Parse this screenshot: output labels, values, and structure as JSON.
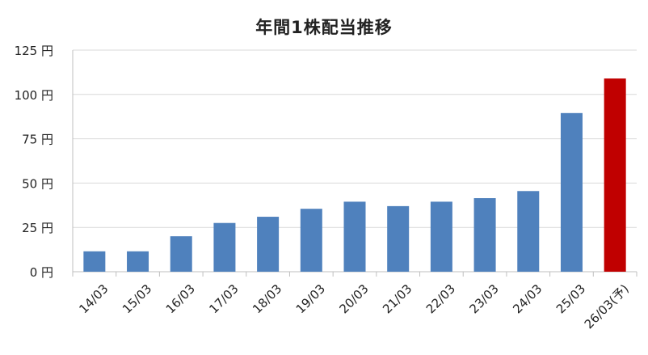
{
  "chart_data": {
    "type": "bar",
    "title": "年間1株配当推移",
    "xlabel": "",
    "ylabel": "",
    "unit": "円",
    "ylim": [
      0,
      125
    ],
    "yticks": [
      0,
      25,
      50,
      75,
      100,
      125
    ],
    "ytick_labels": [
      "0 円",
      "25 円",
      "50 円",
      "75 円",
      "100 円",
      "125 円"
    ],
    "grid": true,
    "legend": "none",
    "categories": [
      "14/03",
      "15/03",
      "16/03",
      "17/03",
      "18/03",
      "19/03",
      "20/03",
      "21/03",
      "22/03",
      "23/03",
      "24/03",
      "25/03",
      "26/03(予)"
    ],
    "values": [
      11.5,
      11.5,
      20,
      27.5,
      31,
      35.5,
      39.5,
      37,
      39.5,
      41.5,
      45.5,
      89.5,
      109
    ],
    "colors": {
      "actual": "#4f81bd",
      "forecast": "#c00000",
      "grid": "#d9d9d9",
      "axis": "#bfbfbf",
      "text": "#222222"
    },
    "forecast_index": 12
  }
}
